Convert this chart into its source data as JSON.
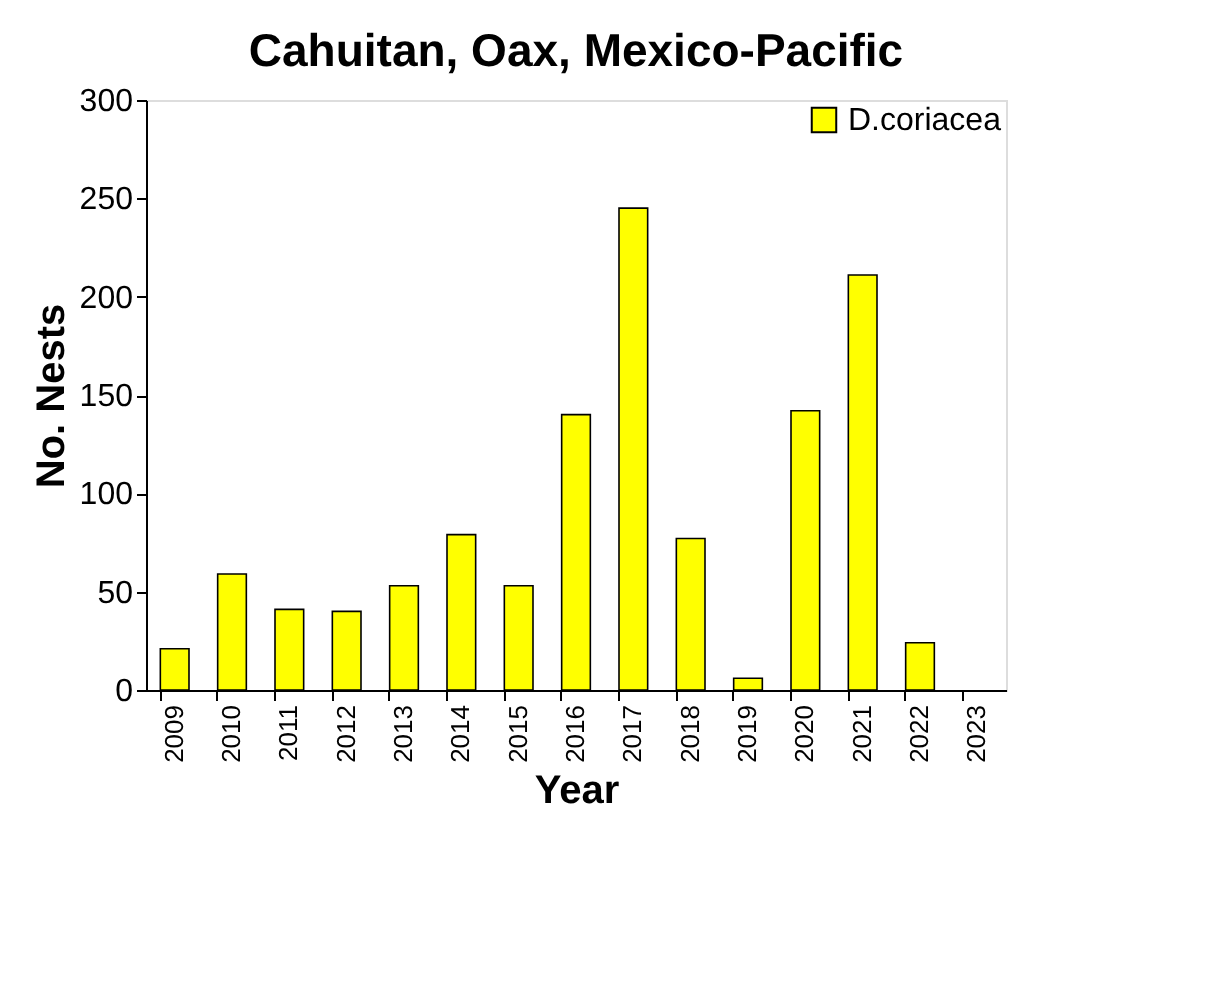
{
  "chart_data": {
    "type": "bar",
    "title": "Cahuitan, Oax, Mexico-Pacific",
    "xlabel": "Year",
    "ylabel": "No. Nests",
    "categories": [
      "2009",
      "2010",
      "2011",
      "2012",
      "2013",
      "2014",
      "2015",
      "2016",
      "2017",
      "2018",
      "2019",
      "2020",
      "2021",
      "2022",
      "2023"
    ],
    "series": [
      {
        "name": "D.coriacea",
        "color": "#ffff00",
        "values": [
          21,
          59,
          41,
          40,
          53,
          79,
          53,
          140,
          245,
          77,
          6,
          142,
          211,
          24,
          null
        ]
      }
    ],
    "ylim": [
      0,
      300
    ],
    "yticks": [
      0,
      50,
      100,
      150,
      200,
      250,
      300
    ],
    "grid": false,
    "legend": "top right"
  }
}
